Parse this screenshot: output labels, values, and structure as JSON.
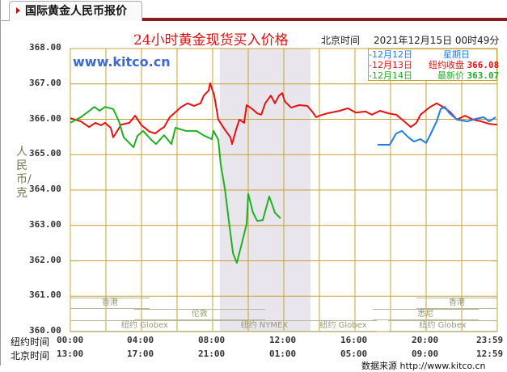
{
  "header": {
    "tab_label": "国际黄金人民币报价"
  },
  "chart_data": {
    "type": "line",
    "title": "24小时黄金现货买入价格",
    "time_label": "北京时间",
    "datetime": "2021年12月15日 00时49分",
    "watermark": "www.kitco.cn",
    "ylabel": "人民币/克",
    "ylim": [
      360,
      368
    ],
    "xlim": [
      0,
      24
    ],
    "grid": true,
    "y_ticks": [
      "368.00",
      "367.00",
      "366.00",
      "365.00",
      "364.00",
      "363.00",
      "362.00",
      "361.00",
      "360.00"
    ],
    "x_rows": [
      {
        "name": "纽约时间",
        "ticks": [
          "00:00",
          "04:00",
          "08:00",
          "12:00",
          "16:00",
          "20:00",
          "23:59"
        ]
      },
      {
        "name": "北京时间",
        "ticks": [
          "13:00",
          "17:00",
          "21:00",
          "01:00",
          "05:00",
          "09:00",
          "12:59"
        ]
      }
    ],
    "shaded_session_hours": [
      8.4,
      13.5
    ],
    "legend": [
      {
        "date": "-12月12日",
        "label": "星期日",
        "value": "",
        "color": "#1e7ee8"
      },
      {
        "date": "-12月13日",
        "label": "纽约收盘",
        "value": "366.08",
        "color": "#e81010"
      },
      {
        "date": "-12月14日",
        "label": "最新价",
        "value": "363.07",
        "color": "#20b020"
      }
    ],
    "series": [
      {
        "name": "12月13日",
        "color": "#e81010",
        "points": [
          [
            0,
            366.03
          ],
          [
            0.59,
            365.94
          ],
          [
            1.05,
            365.78
          ],
          [
            1.41,
            365.9
          ],
          [
            1.73,
            365.83
          ],
          [
            1.95,
            365.9
          ],
          [
            2.27,
            365.76
          ],
          [
            2.41,
            365.49
          ],
          [
            2.86,
            365.85
          ],
          [
            3.32,
            365.9
          ],
          [
            3.64,
            366.1
          ],
          [
            4,
            365.83
          ],
          [
            4.45,
            365.65
          ],
          [
            4.77,
            365.6
          ],
          [
            5.05,
            365.71
          ],
          [
            5.27,
            365.78
          ],
          [
            5.59,
            366.06
          ],
          [
            5.95,
            366.22
          ],
          [
            6.23,
            366.35
          ],
          [
            6.59,
            366.45
          ],
          [
            6.95,
            366.38
          ],
          [
            7.32,
            366.45
          ],
          [
            7.5,
            366.67
          ],
          [
            7.77,
            366.81
          ],
          [
            7.86,
            367.02
          ],
          [
            8.09,
            366.67
          ],
          [
            8.32,
            365.99
          ],
          [
            8.68,
            365.71
          ],
          [
            9,
            365.49
          ],
          [
            9.09,
            365.3
          ],
          [
            9.32,
            365.71
          ],
          [
            9.5,
            365.99
          ],
          [
            9.77,
            365.9
          ],
          [
            9.91,
            366.4
          ],
          [
            10.23,
            366.29
          ],
          [
            10.5,
            366.17
          ],
          [
            10.73,
            366.13
          ],
          [
            10.95,
            366.45
          ],
          [
            11.27,
            366.67
          ],
          [
            11.5,
            366.45
          ],
          [
            11.73,
            366.67
          ],
          [
            11.91,
            366.74
          ],
          [
            12.05,
            366.51
          ],
          [
            12.41,
            366.33
          ],
          [
            12.86,
            366.4
          ],
          [
            13.32,
            366.38
          ],
          [
            13.59,
            366.22
          ],
          [
            13.82,
            366.06
          ],
          [
            14,
            366.1
          ],
          [
            14.45,
            366.17
          ],
          [
            15.14,
            366.24
          ],
          [
            15.59,
            366.31
          ],
          [
            16.05,
            366.19
          ],
          [
            16.59,
            366.22
          ],
          [
            16.95,
            366.13
          ],
          [
            17.41,
            366.24
          ],
          [
            17.86,
            366.17
          ],
          [
            18.32,
            366.13
          ],
          [
            18.77,
            365.94
          ],
          [
            19.14,
            365.78
          ],
          [
            19.45,
            365.9
          ],
          [
            19.68,
            366.13
          ],
          [
            20,
            366.26
          ],
          [
            20.23,
            366.35
          ],
          [
            20.59,
            366.45
          ],
          [
            20.95,
            366.35
          ],
          [
            21.32,
            366.22
          ],
          [
            21.73,
            365.99
          ],
          [
            22.18,
            366.1
          ],
          [
            22.64,
            365.99
          ],
          [
            23.09,
            365.94
          ],
          [
            23.55,
            365.87
          ],
          [
            23.98,
            365.85
          ]
        ]
      },
      {
        "name": "12月12日",
        "color": "#1e7ee8",
        "points": [
          [
            17.27,
            365.28
          ],
          [
            17.95,
            365.28
          ],
          [
            18.32,
            365.6
          ],
          [
            18.64,
            365.67
          ],
          [
            19,
            365.49
          ],
          [
            19.32,
            365.37
          ],
          [
            19.68,
            365.44
          ],
          [
            20,
            365.33
          ],
          [
            20.27,
            365.6
          ],
          [
            20.59,
            365.94
          ],
          [
            20.82,
            366.29
          ],
          [
            21.05,
            366.35
          ],
          [
            21.32,
            366.17
          ],
          [
            21.73,
            365.99
          ],
          [
            22.32,
            365.94
          ],
          [
            22.77,
            366.01
          ],
          [
            23.23,
            366.06
          ],
          [
            23.55,
            365.94
          ],
          [
            23.91,
            366.06
          ]
        ]
      },
      {
        "name": "12月14日",
        "color": "#20b020",
        "points": [
          [
            0,
            365.9
          ],
          [
            0.59,
            366.06
          ],
          [
            1.36,
            366.35
          ],
          [
            1.64,
            366.24
          ],
          [
            1.95,
            366.35
          ],
          [
            2.41,
            366.29
          ],
          [
            2.73,
            365.94
          ],
          [
            3,
            365.49
          ],
          [
            3.55,
            365.21
          ],
          [
            3.77,
            365.53
          ],
          [
            4.09,
            365.67
          ],
          [
            4.55,
            365.42
          ],
          [
            4.82,
            365.3
          ],
          [
            5.27,
            365.55
          ],
          [
            5.68,
            365.3
          ],
          [
            5.91,
            365.76
          ],
          [
            6.5,
            365.67
          ],
          [
            7.09,
            365.67
          ],
          [
            7.55,
            365.53
          ],
          [
            7.95,
            365.44
          ],
          [
            8.05,
            365.67
          ],
          [
            8.32,
            365.42
          ],
          [
            8.45,
            364.73
          ],
          [
            8.68,
            364.05
          ],
          [
            8.91,
            363.13
          ],
          [
            9.14,
            362.22
          ],
          [
            9.36,
            361.94
          ],
          [
            9.68,
            362.58
          ],
          [
            9.91,
            363.04
          ],
          [
            10,
            363.89
          ],
          [
            10.27,
            363.36
          ],
          [
            10.5,
            363.13
          ],
          [
            10.82,
            363.15
          ],
          [
            11.18,
            363.82
          ],
          [
            11.5,
            363.36
          ],
          [
            11.82,
            363.2
          ]
        ]
      }
    ],
    "markets": [
      {
        "label": "香港",
        "row": 1,
        "hours": [
          0,
          4.45
        ]
      },
      {
        "label": "香港",
        "row": 1,
        "hours": [
          19.45,
          24
        ]
      },
      {
        "label": "伦敦",
        "row": 2,
        "hours": [
          3.59,
          10.95
        ]
      },
      {
        "label": "悉尼",
        "row": 2,
        "hours": [
          17,
          22.95
        ]
      },
      {
        "label": "纽约 Globex",
        "row": 3,
        "hours": [
          0,
          8.36
        ]
      },
      {
        "label": "纽约 NYMEX",
        "row": 3,
        "hours": [
          8.36,
          13.45
        ]
      },
      {
        "label": "纽约 Globex",
        "row": 3,
        "hours": [
          13.45,
          17.23
        ]
      },
      {
        "label": "纽约 Globex",
        "row": 3,
        "hours": [
          17.86,
          24
        ]
      }
    ]
  },
  "footer": {
    "source": "数据来源 http://www.kitco.cn"
  }
}
